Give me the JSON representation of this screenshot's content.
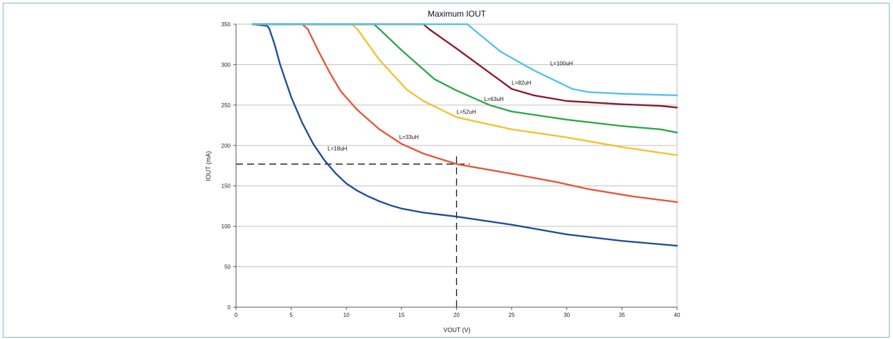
{
  "chart_data": {
    "type": "line",
    "title": "Maximum IOUT",
    "xlabel": "VOUT (V)",
    "ylabel": "IOUT (mA)",
    "xlim": [
      0,
      40
    ],
    "ylim": [
      0,
      350
    ],
    "xticks": [
      0,
      5,
      10,
      15,
      20,
      25,
      30,
      35,
      40
    ],
    "yticks": [
      0,
      50,
      100,
      150,
      200,
      250,
      300,
      350
    ],
    "grid": "horizontal",
    "series": [
      {
        "name": "L=18uH",
        "color": "#1f4e96",
        "x": [
          1.5,
          2.8,
          3.0,
          3.5,
          4.0,
          5.0,
          6.0,
          7.0,
          8.0,
          9.0,
          10.0,
          11.0,
          12.0,
          13.0,
          14.0,
          15.0,
          17.0,
          20.0,
          25.0,
          30.0,
          35.0,
          40.0
        ],
        "y": [
          350,
          348,
          345,
          325,
          300,
          260,
          228,
          202,
          182,
          166,
          153,
          144,
          137,
          131,
          126,
          122,
          117,
          112,
          102,
          90,
          82,
          76
        ]
      },
      {
        "name": "L=33uH",
        "color": "#e8553a",
        "x": [
          1.5,
          6.0,
          6.5,
          7.5,
          8.5,
          9.5,
          11.0,
          13.0,
          15.0,
          17.0,
          20.0,
          25.0,
          29.0,
          32.0,
          36.0,
          40.0
        ],
        "y": [
          350,
          350,
          344,
          316,
          290,
          267,
          244,
          220,
          202,
          190,
          177,
          165,
          155,
          146,
          137,
          130
        ]
      },
      {
        "name": "L=52uH",
        "color": "#f5c12e",
        "x": [
          1.5,
          10.5,
          11.0,
          13.0,
          15.5,
          17.0,
          20.0,
          25.0,
          30.0,
          35.0,
          38.5,
          40.0
        ],
        "y": [
          350,
          350,
          344,
          306,
          269,
          255,
          235,
          220,
          210,
          198,
          191,
          188
        ]
      },
      {
        "name": "L=63uH",
        "color": "#2aa84a",
        "x": [
          1.5,
          12.5,
          13.0,
          15.0,
          18.0,
          20.0,
          23.0,
          25.0,
          30.0,
          35.0,
          38.5,
          40.0
        ],
        "y": [
          350,
          350,
          344,
          318,
          282,
          268,
          250,
          242,
          232,
          224,
          220,
          216
        ]
      },
      {
        "name": "L=82uH",
        "color": "#8b1a2b",
        "x": [
          1.5,
          17.0,
          17.5,
          20.0,
          22.5,
          25.0,
          27.0,
          30.0,
          35.0,
          38.5,
          40.0
        ],
        "y": [
          350,
          350,
          344,
          320,
          295,
          270,
          262,
          255,
          251,
          249,
          247
        ]
      },
      {
        "name": "L=100uH",
        "color": "#55c1e8",
        "x": [
          1.5,
          21.0,
          21.5,
          24.0,
          27.0,
          30.5,
          32.0,
          35.0,
          40.0
        ],
        "y": [
          350,
          350,
          344,
          316,
          293,
          270,
          266,
          264,
          262
        ]
      }
    ],
    "annotations": [
      {
        "text": "L=18uH",
        "x": 8.3,
        "y": 194
      },
      {
        "text": "L=33uH",
        "x": 14.8,
        "y": 208
      },
      {
        "text": "L=52uH",
        "x": 20.0,
        "y": 239
      },
      {
        "text": "L=63uH",
        "x": 22.5,
        "y": 255
      },
      {
        "text": "L=82uH",
        "x": 25.0,
        "y": 275
      },
      {
        "text": "L=100uH",
        "x": 28.5,
        "y": 299
      }
    ],
    "reference_lines": [
      {
        "style": "dashed",
        "x": [
          0,
          21.2
        ],
        "y": [
          177,
          177
        ]
      },
      {
        "style": "dashed",
        "x": [
          20,
          20
        ],
        "y": [
          0,
          190
        ]
      }
    ]
  }
}
